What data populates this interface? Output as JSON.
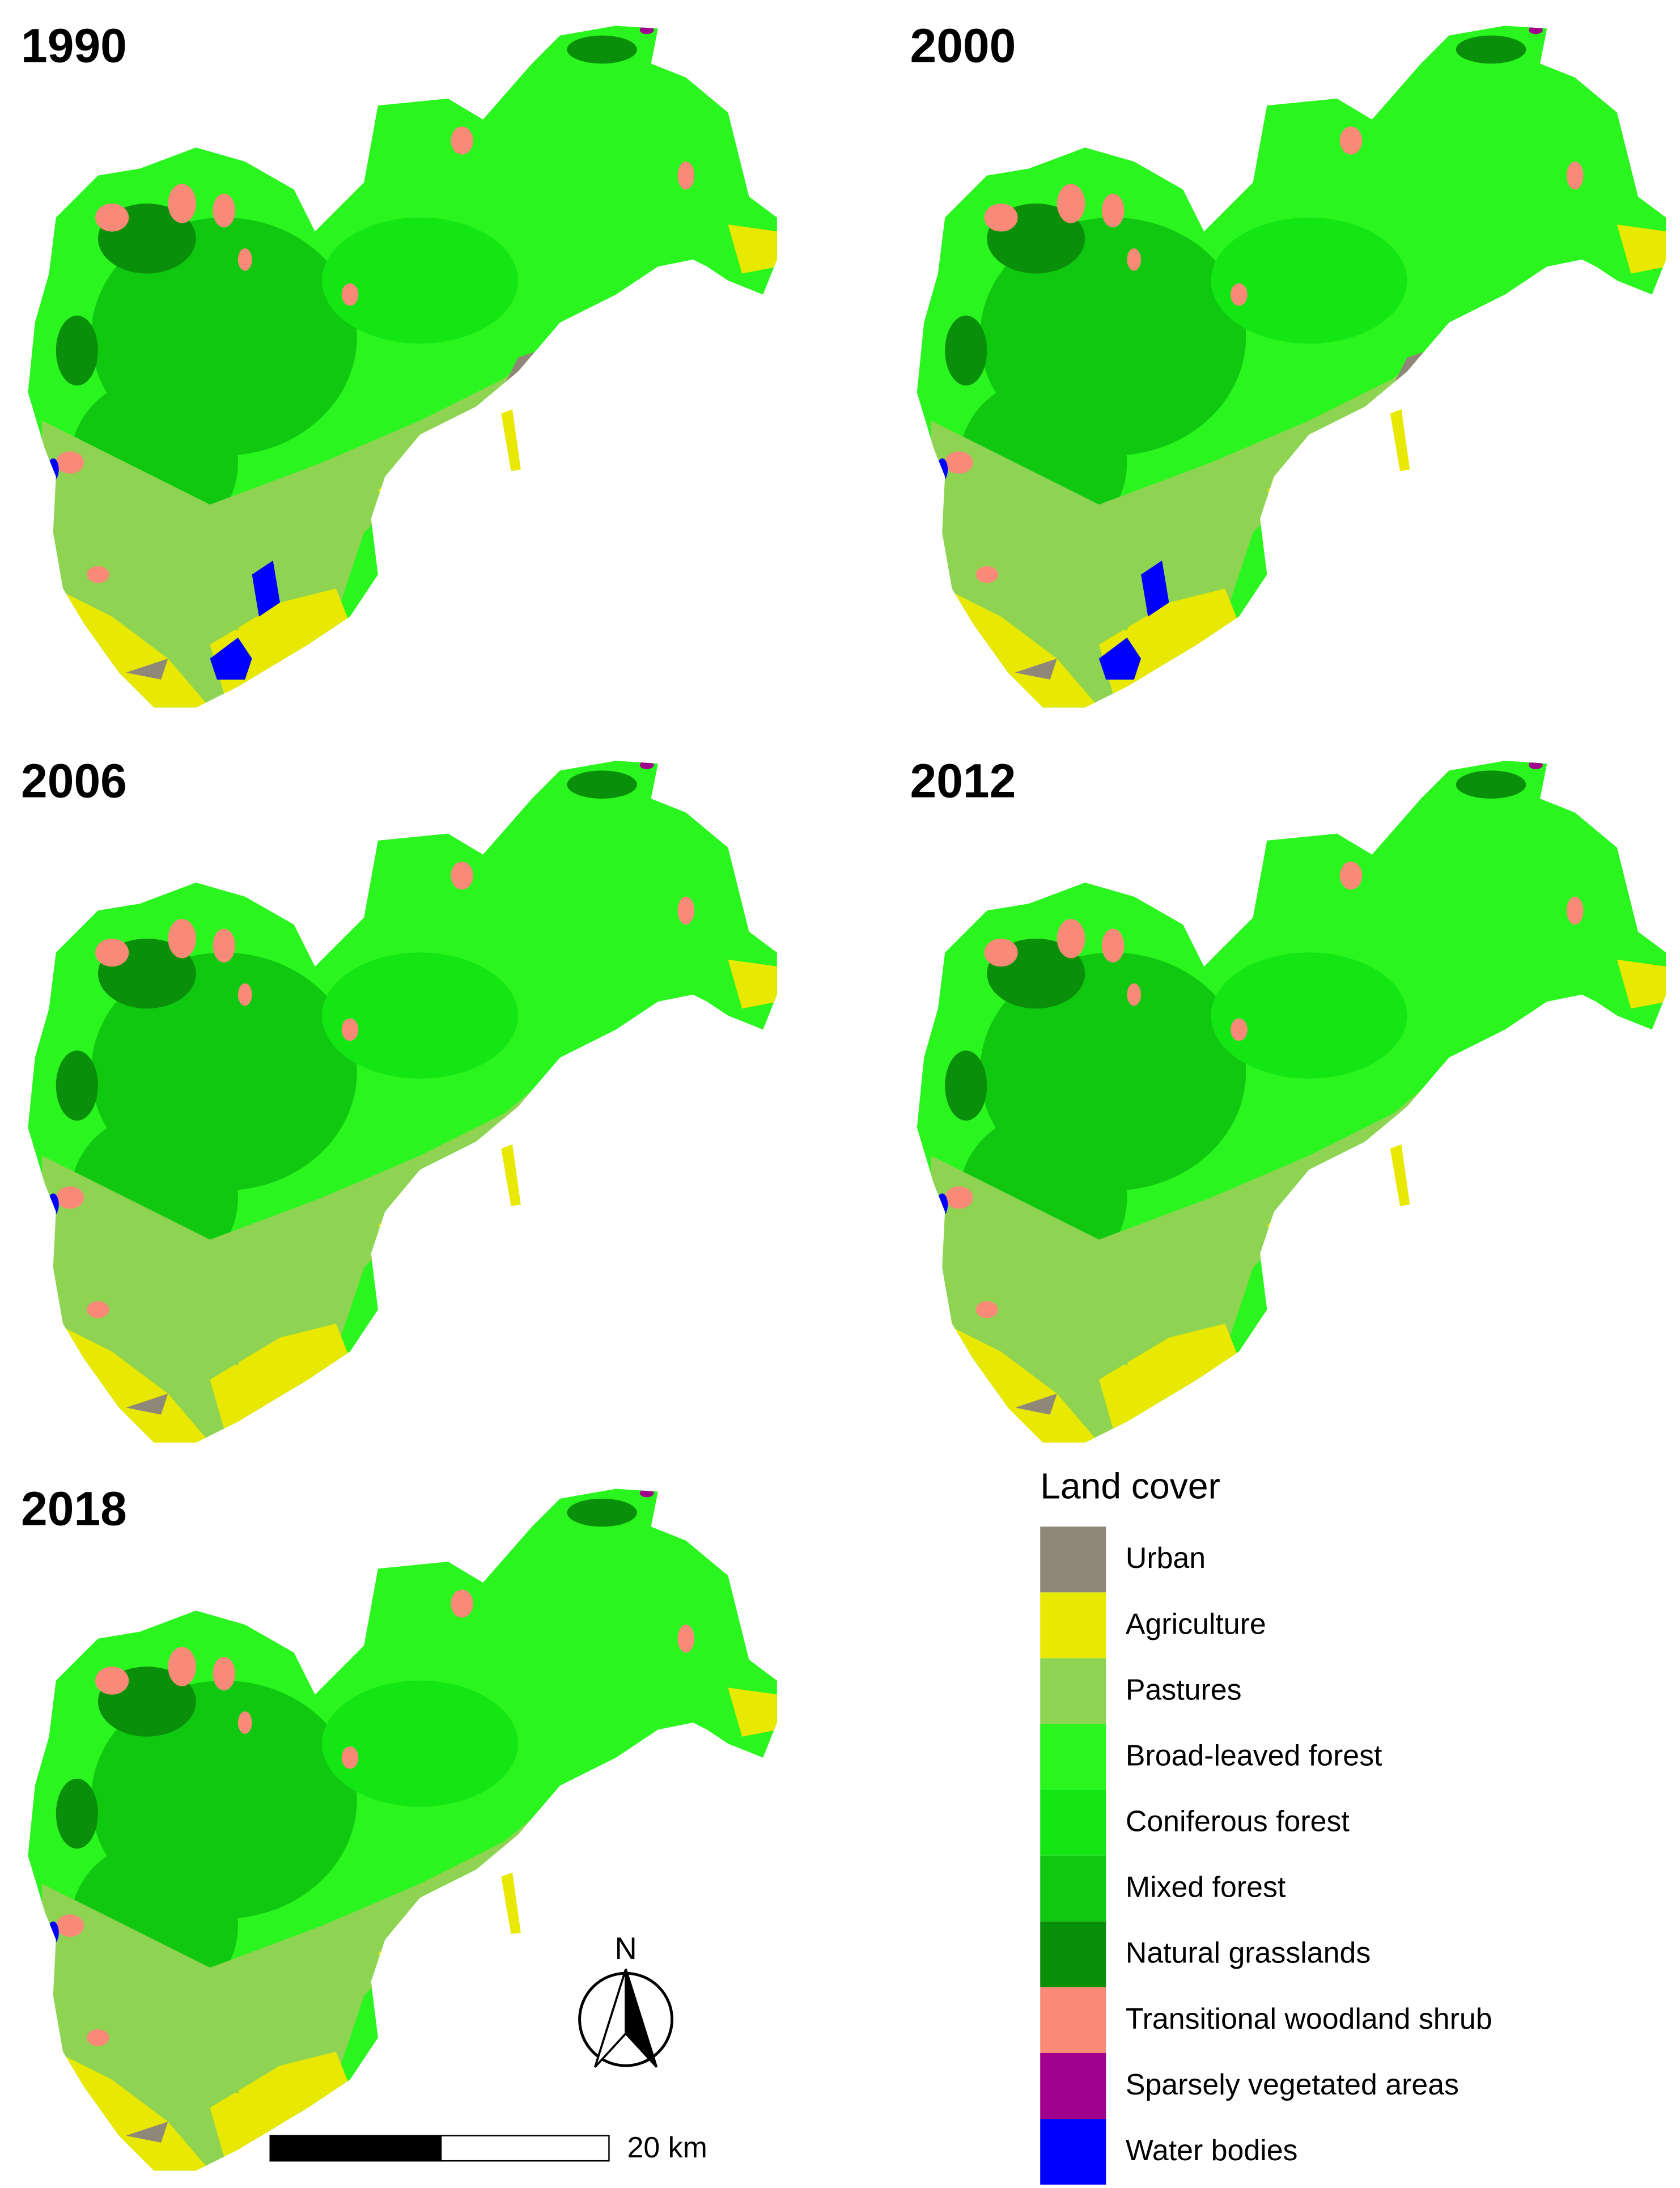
{
  "panels": [
    {
      "title": "1990"
    },
    {
      "title": "2000"
    },
    {
      "title": "2006"
    },
    {
      "title": "2012"
    },
    {
      "title": "2018"
    }
  ],
  "legend": {
    "title": "Land cover",
    "items": [
      {
        "label": "Urban",
        "color": "#8f8778"
      },
      {
        "label": "Agriculture",
        "color": "#e8e800"
      },
      {
        "label": "Pastures",
        "color": "#8ed452"
      },
      {
        "label": "Broad-leaved forest",
        "color": "#2af51e"
      },
      {
        "label": "Coniferous forest",
        "color": "#14e614"
      },
      {
        "label": "Mixed forest",
        "color": "#10c810"
      },
      {
        "label": "Natural grasslands",
        "color": "#0a8f0a"
      },
      {
        "label": "Transitional woodland shrub",
        "color": "#fa8a78"
      },
      {
        "label": "Sparsely vegetated areas",
        "color": "#a0008c"
      },
      {
        "label": "Water bodies",
        "color": "#0000ff"
      }
    ]
  },
  "north_arrow": {
    "label": "N"
  },
  "scale_bar": {
    "label": "20 km"
  }
}
